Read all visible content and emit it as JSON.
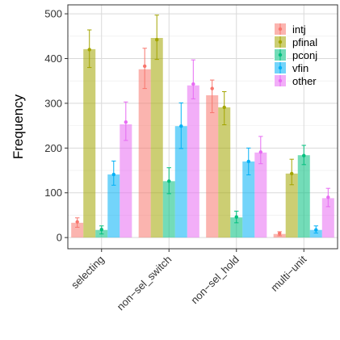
{
  "chart_data": {
    "type": "bar",
    "title": "",
    "xlabel": "",
    "ylabel": "Frequency",
    "ylim": [
      -25,
      520
    ],
    "yticks": [
      0,
      100,
      200,
      300,
      400,
      500
    ],
    "grid": true,
    "legend_position": "top-right",
    "categories": [
      "selecting",
      "non−sel_switch",
      "non−sel_hold",
      "multi−unit"
    ],
    "series": [
      {
        "name": "intj",
        "color": "#F8766D",
        "values": [
          33,
          376,
          318,
          8
        ],
        "errors": [
          [
            23,
            44
          ],
          [
            333,
            423
          ],
          [
            279,
            352
          ],
          [
            4,
            13
          ]
        ],
        "point": [
          35,
          383,
          333,
          9
        ]
      },
      {
        "name": "pfinal",
        "color": "#A3A500",
        "values": [
          421,
          446,
          291,
          143
        ],
        "errors": [
          [
            380,
            464
          ],
          [
            398,
            497
          ],
          [
            252,
            326
          ],
          [
            118,
            175
          ]
        ],
        "point": [
          420,
          442,
          291,
          143
        ]
      },
      {
        "name": "pconj",
        "color": "#00BF7D",
        "values": [
          17,
          126,
          45,
          184
        ],
        "errors": [
          [
            8,
            26
          ],
          [
            98,
            156
          ],
          [
            33,
            59
          ],
          [
            163,
            206
          ]
        ],
        "point": [
          18,
          126,
          46,
          183
        ]
      },
      {
        "name": "vfin",
        "color": "#00B0F6",
        "values": [
          141,
          249,
          170,
          17
        ],
        "errors": [
          [
            117,
            171
          ],
          [
            199,
            301
          ],
          [
            140,
            200
          ],
          [
            10,
            26
          ]
        ],
        "point": [
          141,
          249,
          170,
          17
        ]
      },
      {
        "name": "other",
        "color": "#E76BF3",
        "values": [
          253,
          340,
          190,
          88
        ],
        "errors": [
          [
            217,
            303
          ],
          [
            310,
            397
          ],
          [
            165,
            226
          ],
          [
            69,
            110
          ]
        ],
        "point": [
          258,
          343,
          191,
          90
        ]
      }
    ]
  }
}
